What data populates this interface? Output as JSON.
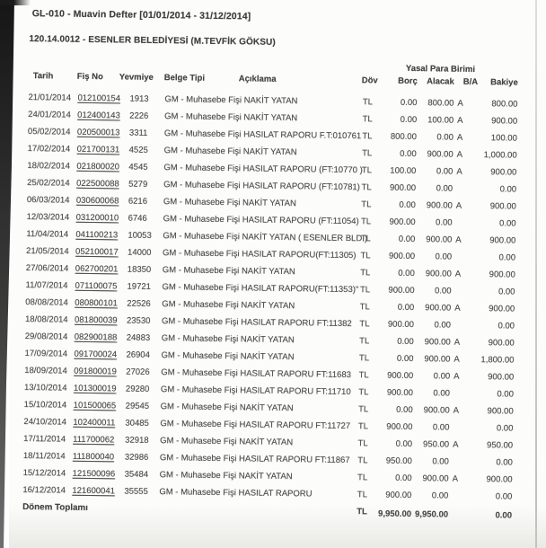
{
  "header": {
    "title": "GL-010 - Muavin Defter [01/01/2014 - 31/12/2014]",
    "account": "120.14.0012 - ESENLER BELEDİYESİ (M.TEVFİK GÖKSU)"
  },
  "table": {
    "currency_group_header": "Yasal Para Birimi",
    "columns": {
      "tarih": "Tarih",
      "fis_no": "Fiş No",
      "yevmiye": "Yevmiye",
      "belge_tipi": "Belge Tipi",
      "aciklama": "Açıklama",
      "dov": "Döv",
      "borc": "Borç",
      "alacak": "Alacak",
      "ba": "B/A",
      "bakiye": "Bakiye"
    },
    "rows": [
      {
        "tarih": "21/01/2014",
        "fis_no": "012100154",
        "yevmiye": "1913",
        "belge_tipi": "GM - Muhasebe Fişi",
        "aciklama": "NAKİT YATAN",
        "dov": "TL",
        "borc": "0.00",
        "alacak": "800.00",
        "ba": "A",
        "bakiye": "800.00"
      },
      {
        "tarih": "24/01/2014",
        "fis_no": "012400143",
        "yevmiye": "2226",
        "belge_tipi": "GM - Muhasebe Fişi",
        "aciklama": "NAKİT YATAN",
        "dov": "TL",
        "borc": "0.00",
        "alacak": "100.00",
        "ba": "A",
        "bakiye": "900.00"
      },
      {
        "tarih": "05/02/2014",
        "fis_no": "020500013",
        "yevmiye": "3311",
        "belge_tipi": "GM - Muhasebe Fişi",
        "aciklama": "HASILAT RAPORU F.T:010761",
        "dov": "TL",
        "borc": "800.00",
        "alacak": "0.00",
        "ba": "A",
        "bakiye": "100.00"
      },
      {
        "tarih": "17/02/2014",
        "fis_no": "021700131",
        "yevmiye": "4525",
        "belge_tipi": "GM - Muhasebe Fişi",
        "aciklama": "NAKİT YATAN",
        "dov": "TL",
        "borc": "0.00",
        "alacak": "900.00",
        "ba": "A",
        "bakiye": "1,000.00"
      },
      {
        "tarih": "18/02/2014",
        "fis_no": "021800020",
        "yevmiye": "4545",
        "belge_tipi": "GM - Muhasebe Fişi",
        "aciklama": "HASILAT RAPORU (FT:10770 )",
        "dov": "TL",
        "borc": "100.00",
        "alacak": "0.00",
        "ba": "A",
        "bakiye": "900.00"
      },
      {
        "tarih": "25/02/2014",
        "fis_no": "022500088",
        "yevmiye": "5279",
        "belge_tipi": "GM - Muhasebe Fişi",
        "aciklama": "HASILAT RAPORU (FT:10781)",
        "dov": "TL",
        "borc": "900.00",
        "alacak": "0.00",
        "ba": "",
        "bakiye": "0.00"
      },
      {
        "tarih": "06/03/2014",
        "fis_no": "030600068",
        "yevmiye": "6216",
        "belge_tipi": "GM - Muhasebe Fişi",
        "aciklama": "NAKİT YATAN",
        "dov": "TL",
        "borc": "0.00",
        "alacak": "900.00",
        "ba": "A",
        "bakiye": "900.00"
      },
      {
        "tarih": "12/03/2014",
        "fis_no": "031200010",
        "yevmiye": "6746",
        "belge_tipi": "GM - Muhasebe Fişi",
        "aciklama": "HASILAT RAPORU (FT:11054)",
        "dov": "TL",
        "borc": "900.00",
        "alacak": "0.00",
        "ba": "",
        "bakiye": "0.00"
      },
      {
        "tarih": "11/04/2014",
        "fis_no": "041100213",
        "yevmiye": "10053",
        "belge_tipi": "GM - Muhasebe Fişi",
        "aciklama": "NAKİT YATAN ( ESENLER BLD.)",
        "dov": "TL",
        "borc": "0.00",
        "alacak": "900.00",
        "ba": "A",
        "bakiye": "900.00"
      },
      {
        "tarih": "21/05/2014",
        "fis_no": "052100017",
        "yevmiye": "14000",
        "belge_tipi": "GM - Muhasebe Fişi",
        "aciklama": "HASILAT RAPORU(FT:11305)",
        "dov": "TL",
        "borc": "900.00",
        "alacak": "0.00",
        "ba": "",
        "bakiye": "0.00"
      },
      {
        "tarih": "27/06/2014",
        "fis_no": "062700201",
        "yevmiye": "18350",
        "belge_tipi": "GM - Muhasebe Fişi",
        "aciklama": "NAKİT YATAN",
        "dov": "TL",
        "borc": "0.00",
        "alacak": "900.00",
        "ba": "A",
        "bakiye": "900.00"
      },
      {
        "tarih": "11/07/2014",
        "fis_no": "071100075",
        "yevmiye": "19721",
        "belge_tipi": "GM - Muhasebe Fişi",
        "aciklama": "HASILAT RAPORU(FT:11353)\"",
        "dov": "TL",
        "borc": "900.00",
        "alacak": "0.00",
        "ba": "",
        "bakiye": "0.00"
      },
      {
        "tarih": "08/08/2014",
        "fis_no": "080800101",
        "yevmiye": "22526",
        "belge_tipi": "GM - Muhasebe Fişi",
        "aciklama": "NAKİT YATAN",
        "dov": "TL",
        "borc": "0.00",
        "alacak": "900.00",
        "ba": "A",
        "bakiye": "900.00"
      },
      {
        "tarih": "18/08/2014",
        "fis_no": "081800039",
        "yevmiye": "23530",
        "belge_tipi": "GM - Muhasebe Fişi",
        "aciklama": "HASILAT RAPORU FT:11382",
        "dov": "TL",
        "borc": "900.00",
        "alacak": "0.00",
        "ba": "",
        "bakiye": "0.00"
      },
      {
        "tarih": "29/08/2014",
        "fis_no": "082900188",
        "yevmiye": "24883",
        "belge_tipi": "GM - Muhasebe Fişi",
        "aciklama": "NAKİT YATAN",
        "dov": "TL",
        "borc": "0.00",
        "alacak": "900.00",
        "ba": "A",
        "bakiye": "900.00"
      },
      {
        "tarih": "17/09/2014",
        "fis_no": "091700024",
        "yevmiye": "26904",
        "belge_tipi": "GM - Muhasebe Fişi",
        "aciklama": "NAKİT YATAN",
        "dov": "TL",
        "borc": "0.00",
        "alacak": "900.00",
        "ba": "A",
        "bakiye": "1,800.00"
      },
      {
        "tarih": "18/09/2014",
        "fis_no": "091800019",
        "yevmiye": "27026",
        "belge_tipi": "GM - Muhasebe Fişi",
        "aciklama": "HASILAT RAPORU FT:11683",
        "dov": "TL",
        "borc": "900.00",
        "alacak": "0.00",
        "ba": "A",
        "bakiye": "900.00"
      },
      {
        "tarih": "13/10/2014",
        "fis_no": "101300019",
        "yevmiye": "29280",
        "belge_tipi": "GM - Muhasebe Fişi",
        "aciklama": "HASILAT RAPORU FT:11710",
        "dov": "TL",
        "borc": "900.00",
        "alacak": "0.00",
        "ba": "",
        "bakiye": "0.00"
      },
      {
        "tarih": "15/10/2014",
        "fis_no": "101500065",
        "yevmiye": "29545",
        "belge_tipi": "GM - Muhasebe Fişi",
        "aciklama": "NAKİT YATAN",
        "dov": "TL",
        "borc": "0.00",
        "alacak": "900.00",
        "ba": "A",
        "bakiye": "900.00"
      },
      {
        "tarih": "24/10/2014",
        "fis_no": "102400011",
        "yevmiye": "30485",
        "belge_tipi": "GM - Muhasebe Fişi",
        "aciklama": "HASILAT RAPORU FT:11727",
        "dov": "TL",
        "borc": "900.00",
        "alacak": "0.00",
        "ba": "",
        "bakiye": "0.00"
      },
      {
        "tarih": "17/11/2014",
        "fis_no": "111700062",
        "yevmiye": "32918",
        "belge_tipi": "GM - Muhasebe Fişi",
        "aciklama": "NAKİT YATAN",
        "dov": "TL",
        "borc": "0.00",
        "alacak": "950.00",
        "ba": "A",
        "bakiye": "950.00"
      },
      {
        "tarih": "18/11/2014",
        "fis_no": "111800040",
        "yevmiye": "32986",
        "belge_tipi": "GM - Muhasebe Fişi",
        "aciklama": "HASILAT RAPORU FT:11867",
        "dov": "TL",
        "borc": "950.00",
        "alacak": "0.00",
        "ba": "",
        "bakiye": "0.00"
      },
      {
        "tarih": "15/12/2014",
        "fis_no": "121500096",
        "yevmiye": "35484",
        "belge_tipi": "GM - Muhasebe Fişi",
        "aciklama": "NAKİT YATAN",
        "dov": "TL",
        "borc": "0.00",
        "alacak": "900.00",
        "ba": "A",
        "bakiye": "900.00"
      },
      {
        "tarih": "16/12/2014",
        "fis_no": "121600041",
        "yevmiye": "35555",
        "belge_tipi": "GM - Muhasebe Fişi",
        "aciklama": "HASILAT RAPORU",
        "dov": "TL",
        "borc": "900.00",
        "alacak": "0.00",
        "ba": "",
        "bakiye": "0.00"
      }
    ],
    "total": {
      "label": "Dönem Toplamı",
      "dov": "TL",
      "borc": "9,950.00",
      "alacak": "9,950.00",
      "bakiye": "0.00"
    }
  },
  "colors": {
    "text": "#4e4e4e",
    "page_background": "#fcfcfa",
    "scan_edge": "#161616"
  }
}
